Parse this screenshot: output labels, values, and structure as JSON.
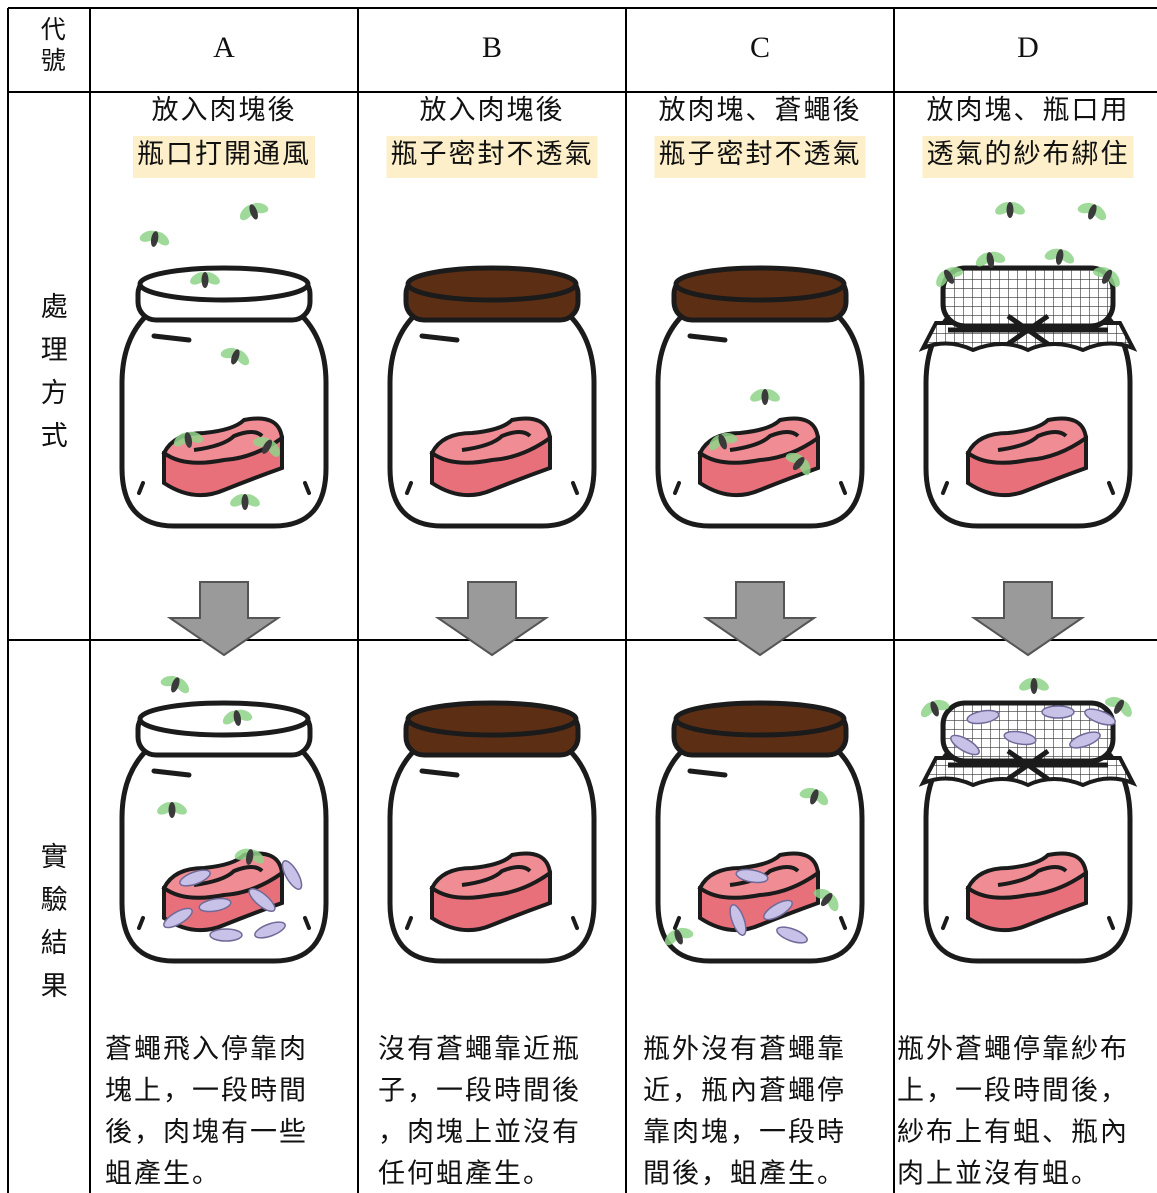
{
  "header": {
    "corner": "代號",
    "columns": [
      "A",
      "B",
      "C",
      "D"
    ]
  },
  "row_labels": {
    "treatment": "處理方式",
    "result": "實驗結果"
  },
  "treatments": [
    {
      "line1": "放入肉塊後",
      "line2": "瓶口打開通風"
    },
    {
      "line1": "放入肉塊後",
      "line2": "瓶子密封不透氣"
    },
    {
      "line1": "放肉塊、蒼蠅後",
      "line2": "瓶子密封不透氣"
    },
    {
      "line1": "放肉塊、瓶口用",
      "line2": "透氣的紗布綁住"
    }
  ],
  "results": [
    [
      "蒼蠅飛入停靠肉",
      "塊上，一段時間",
      "後，肉塊有一些",
      "蛆產生。"
    ],
    [
      "沒有蒼蠅靠近瓶",
      "子，一段時間後",
      "，肉塊上並沒有",
      "任何蛆產生。"
    ],
    [
      "瓶外沒有蒼蠅靠",
      "近，瓶內蒼蠅停",
      "靠肉塊，一段時",
      "間後，蛆產生。"
    ],
    [
      "瓶外蒼蠅停靠紗布",
      "上，一段時間後，",
      "紗布上有蛆、瓶內",
      "肉上並沒有蛆。"
    ]
  ]
}
